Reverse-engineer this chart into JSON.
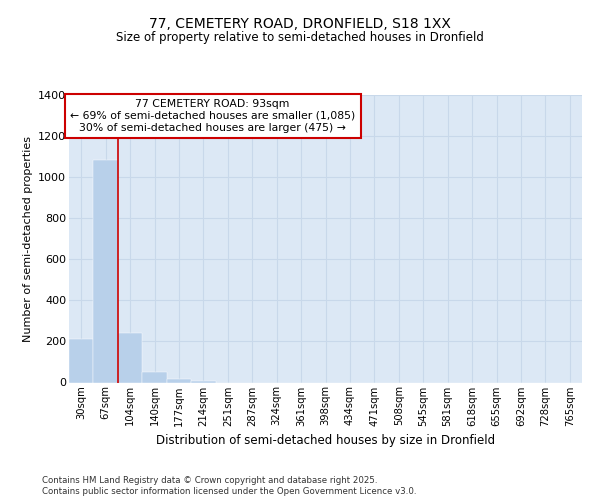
{
  "title1": "77, CEMETERY ROAD, DRONFIELD, S18 1XX",
  "title2": "Size of property relative to semi-detached houses in Dronfield",
  "xlabel": "Distribution of semi-detached houses by size in Dronfield",
  "ylabel": "Number of semi-detached properties",
  "categories": [
    "30sqm",
    "67sqm",
    "104sqm",
    "140sqm",
    "177sqm",
    "214sqm",
    "251sqm",
    "287sqm",
    "324sqm",
    "361sqm",
    "398sqm",
    "434sqm",
    "471sqm",
    "508sqm",
    "545sqm",
    "581sqm",
    "618sqm",
    "655sqm",
    "692sqm",
    "728sqm",
    "765sqm"
  ],
  "values": [
    210,
    1085,
    240,
    50,
    15,
    5,
    0,
    0,
    0,
    0,
    0,
    0,
    0,
    0,
    0,
    0,
    0,
    0,
    0,
    0,
    0
  ],
  "bar_color": "#b8d0ea",
  "bar_edge_color": "#b8d0ea",
  "grid_color": "#c8d8ea",
  "background_color": "#dce8f5",
  "red_line_x": 1.5,
  "annotation_text_line1": "77 CEMETERY ROAD: 93sqm",
  "annotation_text_line2": "← 69% of semi-detached houses are smaller (1,085)",
  "annotation_text_line3": "30% of semi-detached houses are larger (475) →",
  "annotation_box_color": "#ffffff",
  "annotation_border_color": "#cc0000",
  "footer1": "Contains HM Land Registry data © Crown copyright and database right 2025.",
  "footer2": "Contains public sector information licensed under the Open Government Licence v3.0.",
  "ylim": [
    0,
    1400
  ],
  "yticks": [
    0,
    200,
    400,
    600,
    800,
    1000,
    1200,
    1400
  ]
}
